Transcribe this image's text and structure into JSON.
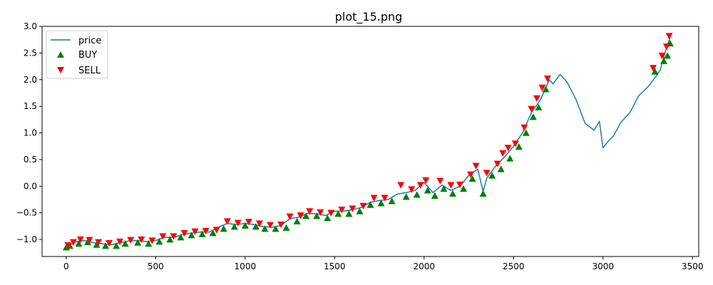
{
  "chart_data": {
    "type": "line",
    "title": "plot_15.png",
    "xlabel": "",
    "ylabel": "",
    "xlim": [
      -135,
      3535
    ],
    "ylim": [
      -1.32,
      3.0
    ],
    "xticks": [
      0,
      500,
      1000,
      1500,
      2000,
      2500,
      3000,
      3500
    ],
    "xtick_labels": [
      "0",
      "500",
      "1000",
      "1500",
      "2000",
      "2500",
      "3000",
      "3500"
    ],
    "yticks": [
      -1.0,
      -0.5,
      0.0,
      0.5,
      1.0,
      1.5,
      2.0,
      2.5,
      3.0
    ],
    "ytick_labels": [
      "−1.0",
      "−0.5",
      "0.0",
      "0.5",
      "1.0",
      "1.5",
      "2.0",
      "2.5",
      "3.0"
    ],
    "grid": false,
    "legend_position": "top-left",
    "series": [
      {
        "name": "price",
        "kind": "line",
        "color": "#1f77b4",
        "points": [
          [
            0,
            -1.13
          ],
          [
            50,
            -1.05
          ],
          [
            100,
            -1.02
          ],
          [
            150,
            -1.06
          ],
          [
            200,
            -1.08
          ],
          [
            250,
            -1.1
          ],
          [
            300,
            -1.06
          ],
          [
            350,
            -1.03
          ],
          [
            400,
            -1.02
          ],
          [
            450,
            -1.04
          ],
          [
            500,
            -1.02
          ],
          [
            550,
            -0.96
          ],
          [
            600,
            -0.96
          ],
          [
            650,
            -0.91
          ],
          [
            700,
            -0.88
          ],
          [
            750,
            -0.86
          ],
          [
            800,
            -0.86
          ],
          [
            850,
            -0.77
          ],
          [
            900,
            -0.7
          ],
          [
            950,
            -0.72
          ],
          [
            1000,
            -0.7
          ],
          [
            1050,
            -0.72
          ],
          [
            1100,
            -0.76
          ],
          [
            1150,
            -0.77
          ],
          [
            1200,
            -0.74
          ],
          [
            1250,
            -0.61
          ],
          [
            1300,
            -0.58
          ],
          [
            1350,
            -0.51
          ],
          [
            1400,
            -0.52
          ],
          [
            1450,
            -0.55
          ],
          [
            1500,
            -0.47
          ],
          [
            1550,
            -0.47
          ],
          [
            1600,
            -0.44
          ],
          [
            1650,
            -0.4
          ],
          [
            1700,
            -0.3
          ],
          [
            1750,
            -0.27
          ],
          [
            1800,
            -0.25
          ],
          [
            1850,
            -0.15
          ],
          [
            1900,
            -0.12
          ],
          [
            1950,
            -0.08
          ],
          [
            2000,
            0.07
          ],
          [
            2050,
            -0.12
          ],
          [
            2100,
            0.02
          ],
          [
            2150,
            -0.08
          ],
          [
            2200,
            0.0
          ],
          [
            2250,
            0.2
          ],
          [
            2300,
            0.32
          ],
          [
            2330,
            -0.1
          ],
          [
            2350,
            0.15
          ],
          [
            2400,
            0.38
          ],
          [
            2450,
            0.55
          ],
          [
            2500,
            0.75
          ],
          [
            2550,
            1.0
          ],
          [
            2600,
            1.38
          ],
          [
            2650,
            1.62
          ],
          [
            2700,
            2.0
          ],
          [
            2720,
            1.92
          ],
          [
            2760,
            2.1
          ],
          [
            2800,
            1.95
          ],
          [
            2850,
            1.62
          ],
          [
            2900,
            1.18
          ],
          [
            2950,
            1.05
          ],
          [
            2980,
            1.22
          ],
          [
            3000,
            0.72
          ],
          [
            3030,
            0.85
          ],
          [
            3060,
            0.95
          ],
          [
            3100,
            1.2
          ],
          [
            3150,
            1.38
          ],
          [
            3200,
            1.7
          ],
          [
            3250,
            1.86
          ],
          [
            3300,
            2.08
          ],
          [
            3320,
            2.18
          ],
          [
            3350,
            2.55
          ],
          [
            3375,
            2.8
          ]
        ]
      },
      {
        "name": "BUY",
        "kind": "scatter",
        "marker": "triangle-up",
        "color": "#008000",
        "points": [
          [
            0,
            -1.15
          ],
          [
            20,
            -1.12
          ],
          [
            70,
            -1.08
          ],
          [
            120,
            -1.05
          ],
          [
            170,
            -1.1
          ],
          [
            220,
            -1.12
          ],
          [
            280,
            -1.12
          ],
          [
            330,
            -1.08
          ],
          [
            400,
            -1.06
          ],
          [
            460,
            -1.08
          ],
          [
            520,
            -1.04
          ],
          [
            580,
            -1.0
          ],
          [
            640,
            -0.96
          ],
          [
            700,
            -0.92
          ],
          [
            760,
            -0.9
          ],
          [
            820,
            -0.88
          ],
          [
            880,
            -0.8
          ],
          [
            940,
            -0.76
          ],
          [
            1000,
            -0.74
          ],
          [
            1060,
            -0.76
          ],
          [
            1110,
            -0.8
          ],
          [
            1170,
            -0.8
          ],
          [
            1230,
            -0.78
          ],
          [
            1290,
            -0.66
          ],
          [
            1340,
            -0.56
          ],
          [
            1400,
            -0.56
          ],
          [
            1460,
            -0.6
          ],
          [
            1520,
            -0.52
          ],
          [
            1580,
            -0.52
          ],
          [
            1640,
            -0.47
          ],
          [
            1700,
            -0.35
          ],
          [
            1760,
            -0.32
          ],
          [
            1820,
            -0.28
          ],
          [
            1900,
            -0.2
          ],
          [
            1960,
            -0.16
          ],
          [
            2020,
            -0.08
          ],
          [
            2060,
            -0.18
          ],
          [
            2110,
            -0.05
          ],
          [
            2160,
            -0.14
          ],
          [
            2220,
            -0.05
          ],
          [
            2270,
            0.14
          ],
          [
            2330,
            -0.14
          ],
          [
            2380,
            0.2
          ],
          [
            2430,
            0.32
          ],
          [
            2480,
            0.52
          ],
          [
            2530,
            0.74
          ],
          [
            2570,
            1.0
          ],
          [
            2610,
            1.3
          ],
          [
            2640,
            1.48
          ],
          [
            2680,
            1.82
          ],
          [
            3290,
            2.15
          ],
          [
            3340,
            2.35
          ],
          [
            3360,
            2.45
          ],
          [
            3375,
            2.68
          ]
        ]
      },
      {
        "name": "SELL",
        "kind": "scatter",
        "marker": "triangle-down",
        "color": "#ff0000",
        "points": [
          [
            10,
            -1.11
          ],
          [
            40,
            -1.05
          ],
          [
            80,
            -1.0
          ],
          [
            130,
            -1.01
          ],
          [
            180,
            -1.05
          ],
          [
            240,
            -1.07
          ],
          [
            300,
            -1.04
          ],
          [
            360,
            -1.01
          ],
          [
            420,
            -1.0
          ],
          [
            480,
            -1.02
          ],
          [
            540,
            -0.94
          ],
          [
            600,
            -0.94
          ],
          [
            660,
            -0.88
          ],
          [
            720,
            -0.85
          ],
          [
            780,
            -0.84
          ],
          [
            840,
            -0.82
          ],
          [
            900,
            -0.66
          ],
          [
            960,
            -0.69
          ],
          [
            1020,
            -0.67
          ],
          [
            1080,
            -0.7
          ],
          [
            1140,
            -0.73
          ],
          [
            1200,
            -0.72
          ],
          [
            1250,
            -0.57
          ],
          [
            1310,
            -0.55
          ],
          [
            1360,
            -0.47
          ],
          [
            1420,
            -0.49
          ],
          [
            1480,
            -0.5
          ],
          [
            1540,
            -0.44
          ],
          [
            1600,
            -0.42
          ],
          [
            1660,
            -0.37
          ],
          [
            1720,
            -0.22
          ],
          [
            1780,
            -0.22
          ],
          [
            1870,
            0.02
          ],
          [
            1930,
            -0.06
          ],
          [
            1980,
            0.02
          ],
          [
            2010,
            0.11
          ],
          [
            2090,
            0.1
          ],
          [
            2150,
            0.02
          ],
          [
            2200,
            0.03
          ],
          [
            2260,
            0.22
          ],
          [
            2290,
            0.38
          ],
          [
            2350,
            0.25
          ],
          [
            2410,
            0.42
          ],
          [
            2440,
            0.62
          ],
          [
            2470,
            0.72
          ],
          [
            2510,
            0.8
          ],
          [
            2560,
            1.1
          ],
          [
            2600,
            1.45
          ],
          [
            2630,
            1.65
          ],
          [
            2660,
            1.85
          ],
          [
            2690,
            2.02
          ],
          [
            3280,
            2.22
          ],
          [
            3330,
            2.45
          ],
          [
            3355,
            2.62
          ],
          [
            3370,
            2.82
          ]
        ]
      }
    ]
  }
}
